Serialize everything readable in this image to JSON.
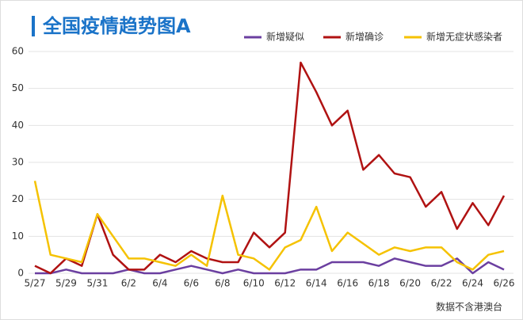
{
  "chart_data": {
    "type": "line",
    "title": "全国疫情趋势图A",
    "categories": [
      "5/27",
      null,
      "5/29",
      null,
      "5/31",
      null,
      "6/2",
      null,
      "6/4",
      null,
      "6/6",
      null,
      "6/8",
      null,
      "6/10",
      null,
      "6/12",
      null,
      "6/14",
      null,
      "6/16",
      null,
      "6/18",
      null,
      "6/20",
      null,
      "6/22",
      null,
      "6/24",
      null,
      "6/26"
    ],
    "series": [
      {
        "name": "新增疑似",
        "color": "#6b3fa0",
        "values": [
          0,
          0,
          1,
          0,
          0,
          0,
          1,
          0,
          0,
          1,
          2,
          1,
          0,
          1,
          0,
          0,
          0,
          1,
          1,
          3,
          3,
          3,
          2,
          4,
          3,
          2,
          2,
          4,
          0,
          3,
          1
        ]
      },
      {
        "name": "新增确诊",
        "color": "#b01212",
        "values": [
          2,
          0,
          4,
          2,
          16,
          5,
          1,
          1,
          5,
          3,
          6,
          4,
          3,
          3,
          11,
          7,
          11,
          57,
          49,
          40,
          44,
          28,
          32,
          27,
          26,
          18,
          22,
          12,
          19,
          13,
          21
        ]
      },
      {
        "name": "新增无症状感染者",
        "color": "#f5c200",
        "values": [
          25,
          5,
          4,
          3,
          16,
          10,
          4,
          4,
          3,
          2,
          5,
          2,
          21,
          5,
          4,
          1,
          7,
          9,
          18,
          6,
          11,
          8,
          5,
          7,
          6,
          7,
          7,
          3,
          1,
          5,
          6
        ]
      }
    ],
    "ylim": [
      0,
      60
    ],
    "yticks": [
      0,
      10,
      20,
      30,
      40,
      50,
      60
    ],
    "grid": true,
    "note": "数据不含港澳台"
  }
}
